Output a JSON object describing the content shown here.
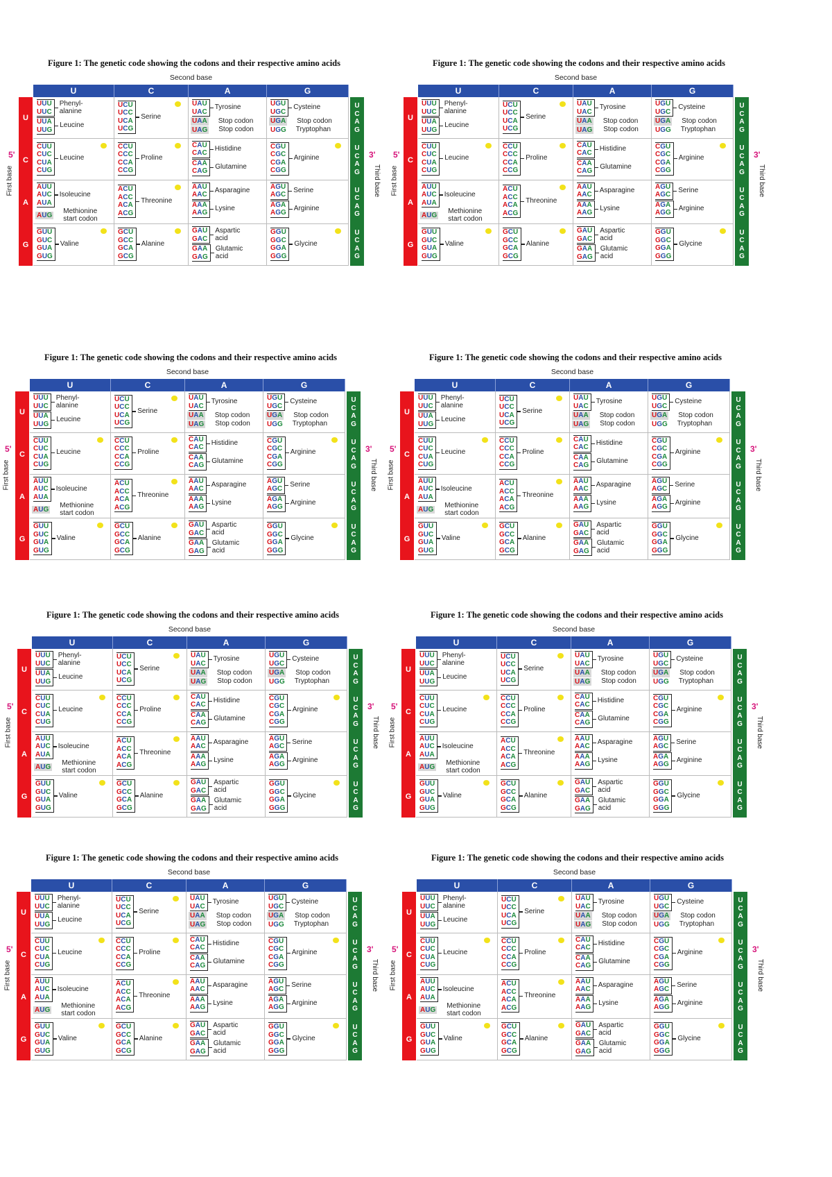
{
  "figure": {
    "title": "Figure 1: The genetic code showing the codons and their respective amino acids",
    "second_base_label": "Second base",
    "first_base_label": "First base",
    "third_base_label": "Third base",
    "five_prime": "5'",
    "three_prime": "3'",
    "bases": [
      "U",
      "C",
      "A",
      "G"
    ],
    "colors": {
      "header": "#2a4fa8",
      "first_base": "#e8141c",
      "third_base": "#1d7a34",
      "dot": "#f2e21a"
    },
    "rows": [
      [
        {
          "dot": false,
          "groups": [
            {
              "codons": [
                "UUU",
                "UUC"
              ],
              "label": "Phenyl-\nalanine"
            },
            {
              "codons": [
                "UUA",
                "UUG"
              ],
              "label": "Leucine"
            }
          ]
        },
        {
          "dot": true,
          "groups": [
            {
              "codons": [
                "UCU",
                "UCC",
                "UCA",
                "UCG"
              ],
              "label": "Serine"
            }
          ]
        },
        {
          "dot": false,
          "groups": [
            {
              "codons": [
                "UAU",
                "UAC"
              ],
              "label": "Tyrosine"
            },
            {
              "codons": [
                "UAA"
              ],
              "label": "Stop codon",
              "plain": true,
              "highlight": true
            },
            {
              "codons": [
                "UAG"
              ],
              "label": "Stop codon",
              "plain": true,
              "highlight": true
            }
          ]
        },
        {
          "dot": false,
          "groups": [
            {
              "codons": [
                "UGU",
                "UGC"
              ],
              "label": "Cysteine"
            },
            {
              "codons": [
                "UGA"
              ],
              "label": "Stop codon",
              "plain": true,
              "highlight": true
            },
            {
              "codons": [
                "UGG"
              ],
              "label": "Tryptophan",
              "plain": true
            }
          ]
        }
      ],
      [
        {
          "dot": true,
          "groups": [
            {
              "codons": [
                "CUU",
                "CUC",
                "CUA",
                "CUG"
              ],
              "label": "Leucine"
            }
          ]
        },
        {
          "dot": true,
          "groups": [
            {
              "codons": [
                "CCU",
                "CCC",
                "CCA",
                "CCG"
              ],
              "label": "Proline"
            }
          ]
        },
        {
          "dot": false,
          "groups": [
            {
              "codons": [
                "CAU",
                "CAC"
              ],
              "label": "Histidine"
            },
            {
              "codons": [
                "CAA",
                "CAG"
              ],
              "label": "Glutamine"
            }
          ]
        },
        {
          "dot": true,
          "groups": [
            {
              "codons": [
                "CGU",
                "CGC",
                "CGA",
                "CGG"
              ],
              "label": "Arginine"
            }
          ]
        }
      ],
      [
        {
          "dot": false,
          "groups": [
            {
              "codons": [
                "AUU",
                "AUC",
                "AUA"
              ],
              "label": "Isoleucine"
            },
            {
              "codons": [
                "AUG"
              ],
              "label": "Methionine\nstart codon",
              "plain": true,
              "highlight": true
            }
          ]
        },
        {
          "dot": true,
          "groups": [
            {
              "codons": [
                "ACU",
                "ACC",
                "ACA",
                "ACG"
              ],
              "label": "Threonine"
            }
          ]
        },
        {
          "dot": false,
          "groups": [
            {
              "codons": [
                "AAU",
                "AAC"
              ],
              "label": "Asparagine"
            },
            {
              "codons": [
                "AAA",
                "AAG"
              ],
              "label": "Lysine"
            }
          ]
        },
        {
          "dot": false,
          "groups": [
            {
              "codons": [
                "AGU",
                "AGC"
              ],
              "label": "Serine"
            },
            {
              "codons": [
                "AGA",
                "AGG"
              ],
              "label": "Arginine"
            }
          ]
        }
      ],
      [
        {
          "dot": true,
          "groups": [
            {
              "codons": [
                "GUU",
                "GUC",
                "GUA",
                "GUG"
              ],
              "label": "Valine"
            }
          ]
        },
        {
          "dot": true,
          "groups": [
            {
              "codons": [
                "GCU",
                "GCC",
                "GCA",
                "GCG"
              ],
              "label": "Alanine"
            }
          ]
        },
        {
          "dot": false,
          "groups": [
            {
              "codons": [
                "GAU",
                "GAC"
              ],
              "label": "Aspartic\nacid"
            },
            {
              "codons": [
                "GAA",
                "GAG"
              ],
              "label": "Glutamic\nacid"
            }
          ]
        },
        {
          "dot": true,
          "groups": [
            {
              "codons": [
                "GGU",
                "GGC",
                "GGA",
                "GGG"
              ],
              "label": "Glycine"
            }
          ]
        }
      ]
    ]
  }
}
